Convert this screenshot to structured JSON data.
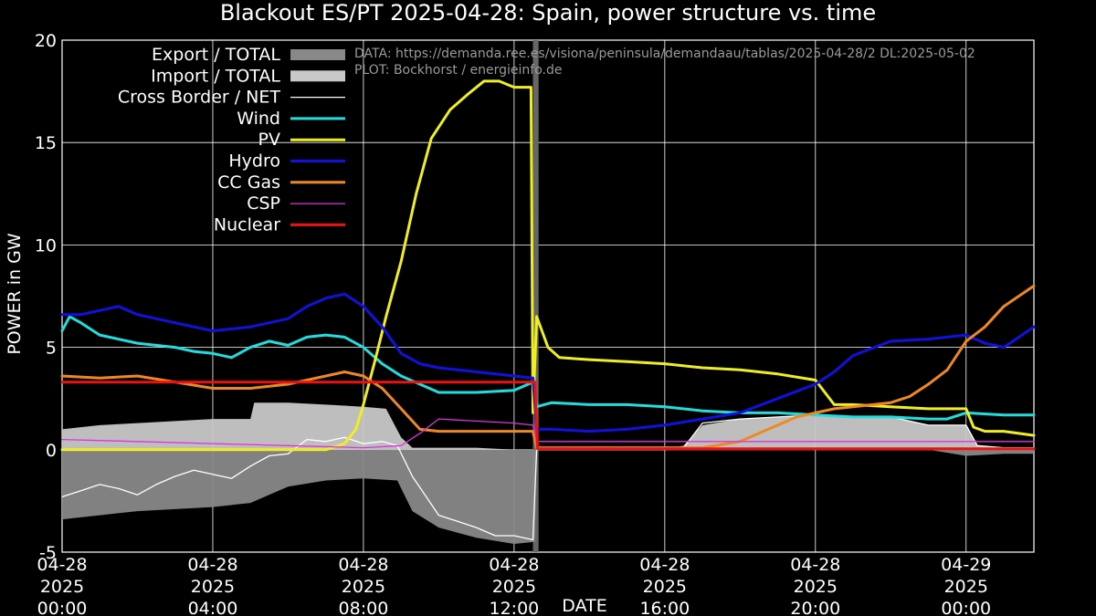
{
  "chart_data": {
    "type": "line",
    "title": "Blackout ES/PT 2025-04-28: Spain, power structure vs. time",
    "xlabel": "DATE",
    "ylabel": "POWER in GW",
    "xlim": [
      0,
      25.8
    ],
    "ylim": [
      -5,
      20
    ],
    "x_unit": "hours since 2025-04-28 00:00",
    "yticks": [
      -5,
      0,
      5,
      10,
      15,
      20
    ],
    "ytick_labels": [
      "-5",
      "0",
      "5",
      "10",
      "15",
      "20"
    ],
    "xticks": [
      {
        "x": 0,
        "lines": [
          "04-28",
          "2025",
          "00:00"
        ]
      },
      {
        "x": 4,
        "lines": [
          "04-28",
          "2025",
          "04:00"
        ]
      },
      {
        "x": 8,
        "lines": [
          "04-28",
          "2025",
          "08:00"
        ]
      },
      {
        "x": 12,
        "lines": [
          "04-28",
          "2025",
          "12:00"
        ]
      },
      {
        "x": 16,
        "lines": [
          "04-28",
          "2025",
          "16:00"
        ]
      },
      {
        "x": 20,
        "lines": [
          "04-28",
          "2025",
          "20:00"
        ]
      },
      {
        "x": 24,
        "lines": [
          "04-29",
          "2025",
          "00:00"
        ]
      }
    ],
    "grid": true,
    "legend_position": "top-left",
    "annotations": [
      "DATA: https://demanda.ree.es/visiona/peninsula/demandaau/tablas/2025-04-28/2 DL:2025-05-02",
      "PLOT: Bockhorst / energieinfo.de"
    ],
    "blackout_band": [
      12.5,
      12.65
    ],
    "areas": [
      {
        "name": "Export / TOTAL",
        "color": "#888888",
        "x": [
          0,
          1,
          2,
          3,
          4,
          5,
          6,
          7,
          8,
          8.9,
          9.3,
          10,
          11,
          12,
          12.55,
          12.6,
          16,
          17,
          18,
          19,
          20,
          21,
          22,
          23,
          24,
          25,
          25.8
        ],
        "y": [
          -3.4,
          -3.2,
          -3.0,
          -2.9,
          -2.8,
          -2.6,
          -1.8,
          -1.5,
          -1.4,
          -1.5,
          -3.0,
          -3.8,
          -4.3,
          -4.6,
          -4.5,
          0,
          0,
          0,
          0,
          0,
          0,
          0,
          0,
          0,
          -0.3,
          -0.2,
          -0.2
        ]
      },
      {
        "name": "Import / TOTAL",
        "color": "#c8c8c8",
        "x": [
          0,
          1,
          2,
          3,
          4,
          5,
          5.1,
          6,
          7,
          8,
          8.6,
          9,
          9.3,
          10,
          11,
          12,
          12.6,
          16,
          16.5,
          17,
          18,
          19,
          20,
          21,
          22,
          23,
          24,
          24.3,
          25,
          25.8
        ],
        "y": [
          1.0,
          1.2,
          1.3,
          1.4,
          1.5,
          1.5,
          2.3,
          2.3,
          2.2,
          2.1,
          2.0,
          0.6,
          0.1,
          0.1,
          0.1,
          0,
          0,
          0,
          0.2,
          1.2,
          1.5,
          1.6,
          1.7,
          1.6,
          1.6,
          1.2,
          1.2,
          0.2,
          0.1,
          0.1
        ]
      }
    ],
    "series": [
      {
        "name": "Cross Border / NET",
        "color": "#ffffff",
        "width": 1.3,
        "x": [
          0,
          0.5,
          1,
          1.5,
          2,
          2.5,
          3,
          3.5,
          4,
          4.5,
          5,
          5.5,
          6,
          6.5,
          7,
          7.5,
          8,
          8.5,
          8.9,
          9.3,
          10,
          10.5,
          11,
          11.5,
          12,
          12.5,
          12.6,
          16,
          16.5,
          17,
          18,
          19,
          20,
          21,
          22,
          23,
          24,
          24.3,
          25,
          25.8
        ],
        "y": [
          -2.3,
          -2.0,
          -1.7,
          -1.9,
          -2.2,
          -1.7,
          -1.3,
          -1.0,
          -1.2,
          -1.4,
          -0.8,
          -0.3,
          -0.2,
          0.5,
          0.4,
          0.6,
          0.3,
          0.4,
          0.2,
          -1.3,
          -3.2,
          -3.5,
          -3.8,
          -4.2,
          -4.2,
          -4.4,
          0,
          0,
          0.1,
          1.3,
          1.5,
          1.6,
          1.7,
          1.6,
          1.6,
          1.2,
          1.2,
          0.2,
          0.1,
          0.1
        ]
      },
      {
        "name": "Wind",
        "color": "#22dddd",
        "width": 3,
        "x": [
          0,
          0.2,
          0.5,
          1,
          2,
          3,
          3.5,
          4,
          4.5,
          5,
          5.5,
          6,
          6.5,
          7,
          7.5,
          8,
          8.5,
          9,
          9.5,
          10,
          11,
          12,
          12.5,
          12.6,
          13,
          14,
          15,
          16,
          17,
          18,
          19,
          20,
          21,
          22,
          23,
          23.5,
          24,
          25,
          25.8
        ],
        "y": [
          5.8,
          6.5,
          6.2,
          5.6,
          5.2,
          5.0,
          4.8,
          4.7,
          4.5,
          5.0,
          5.3,
          5.1,
          5.5,
          5.6,
          5.5,
          5.0,
          4.2,
          3.6,
          3.2,
          2.8,
          2.8,
          2.9,
          3.3,
          2.1,
          2.3,
          2.2,
          2.2,
          2.1,
          1.9,
          1.8,
          1.8,
          1.7,
          1.6,
          1.6,
          1.5,
          1.5,
          1.8,
          1.7,
          1.7
        ]
      },
      {
        "name": "PV",
        "color": "#eeee22",
        "width": 3,
        "x": [
          0,
          4,
          7,
          7.5,
          7.8,
          8,
          8.3,
          8.6,
          9,
          9.4,
          9.8,
          10.3,
          10.8,
          11.2,
          11.6,
          12,
          12.45,
          12.5,
          12.6,
          12.9,
          13.2,
          14,
          15,
          16,
          17,
          18,
          19,
          20,
          20.5,
          21,
          22,
          23,
          24,
          24.2,
          24.5,
          25,
          25.8
        ],
        "y": [
          0,
          0,
          0,
          0.3,
          1.0,
          2.2,
          4.3,
          6.5,
          9.2,
          12.5,
          15.2,
          16.6,
          17.4,
          18.0,
          18.0,
          17.7,
          17.7,
          1.8,
          6.5,
          5.0,
          4.5,
          4.4,
          4.3,
          4.2,
          4.0,
          3.9,
          3.7,
          3.4,
          2.2,
          2.2,
          2.1,
          2.0,
          2.0,
          1.1,
          0.9,
          0.9,
          0.7
        ]
      },
      {
        "name": "Hydro",
        "color": "#1111dd",
        "width": 3,
        "x": [
          0,
          0.5,
          1,
          1.5,
          2,
          3,
          4,
          4.5,
          5,
          6,
          6.5,
          7,
          7.5,
          8,
          8.5,
          9,
          9.5,
          10,
          11,
          12,
          12.5,
          12.6,
          13,
          14,
          15,
          16,
          17,
          18,
          19,
          20,
          20.5,
          21,
          22,
          23,
          24,
          24.5,
          25,
          25.8
        ],
        "y": [
          6.6,
          6.6,
          6.8,
          7.0,
          6.6,
          6.2,
          5.8,
          5.9,
          6.0,
          6.4,
          7.0,
          7.4,
          7.6,
          7.0,
          6.0,
          4.7,
          4.2,
          4.0,
          3.8,
          3.6,
          3.5,
          1.0,
          1.0,
          0.9,
          1.0,
          1.2,
          1.5,
          1.8,
          2.5,
          3.2,
          3.8,
          4.6,
          5.3,
          5.4,
          5.6,
          5.2,
          5.0,
          6.0
        ]
      },
      {
        "name": "CC Gas",
        "color": "#ee8822",
        "width": 3,
        "x": [
          0,
          1,
          2,
          3,
          4,
          5,
          6,
          7,
          7.5,
          8,
          8.5,
          9,
          9.5,
          10,
          11,
          12,
          12.5,
          12.6,
          13,
          14,
          15,
          16,
          17,
          18,
          18.5,
          19,
          19.5,
          20,
          20.5,
          21,
          22,
          22.5,
          23,
          23.5,
          24,
          24.5,
          25,
          25.8
        ],
        "y": [
          3.6,
          3.5,
          3.6,
          3.3,
          3.0,
          3.0,
          3.2,
          3.6,
          3.8,
          3.6,
          3.0,
          2.0,
          1.0,
          0.9,
          0.9,
          0.9,
          0.9,
          0.1,
          0.1,
          0.1,
          0.1,
          0.1,
          0.1,
          0.4,
          0.8,
          1.2,
          1.6,
          1.8,
          2.0,
          2.1,
          2.3,
          2.6,
          3.2,
          3.9,
          5.3,
          6.0,
          7.0,
          8.0
        ]
      },
      {
        "name": "CSP",
        "color": "#dd33dd",
        "width": 1.3,
        "x": [
          0,
          2,
          4,
          6,
          8,
          9,
          9.5,
          10,
          11,
          12,
          12.5,
          12.6,
          16,
          20,
          24,
          25.8
        ],
        "y": [
          0.5,
          0.4,
          0.3,
          0.2,
          0.1,
          0.2,
          0.8,
          1.5,
          1.4,
          1.3,
          1.2,
          0.4,
          0.4,
          0.4,
          0.4,
          0.4
        ]
      },
      {
        "name": "Nuclear",
        "color": "#ee1111",
        "width": 3,
        "x": [
          0,
          12.55,
          12.62,
          25.8
        ],
        "y": [
          3.3,
          3.3,
          0.05,
          0.05
        ]
      }
    ]
  }
}
